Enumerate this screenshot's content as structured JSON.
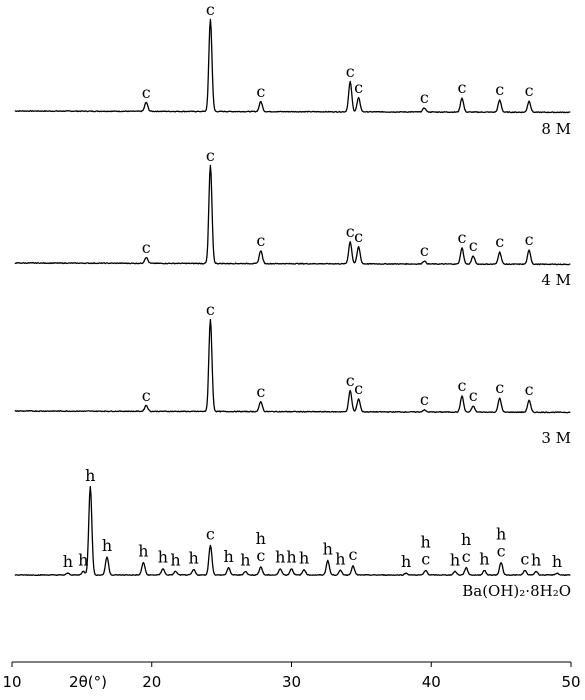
{
  "chart_data": {
    "type": "line",
    "xlabel": "2θ(°)",
    "xlim": [
      10,
      50
    ],
    "x_ticks": [
      10,
      20,
      30,
      40,
      50
    ],
    "y_scale": "intensity (arbitrary units, stacked traces)",
    "grid": false,
    "legend": "none",
    "series": [
      {
        "name": "8 M",
        "baseline": 0.02,
        "peaks": [
          {
            "x": 19.6,
            "y": 0.09,
            "label": "c"
          },
          {
            "x": 24.2,
            "y": 0.92,
            "label": "c"
          },
          {
            "x": 27.8,
            "y": 0.1,
            "label": "c"
          },
          {
            "x": 34.2,
            "y": 0.3,
            "label": "c"
          },
          {
            "x": 34.8,
            "y": 0.14,
            "label": "c"
          },
          {
            "x": 39.5,
            "y": 0.04,
            "label": "c"
          },
          {
            "x": 42.2,
            "y": 0.14,
            "label": "c"
          },
          {
            "x": 44.9,
            "y": 0.12,
            "label": "c"
          },
          {
            "x": 47.0,
            "y": 0.11,
            "label": "c"
          }
        ]
      },
      {
        "name": "4 M",
        "baseline": 0.02,
        "peaks": [
          {
            "x": 19.6,
            "y": 0.06,
            "label": "c"
          },
          {
            "x": 24.2,
            "y": 0.98,
            "label": "c"
          },
          {
            "x": 27.8,
            "y": 0.13,
            "label": "c"
          },
          {
            "x": 34.2,
            "y": 0.22,
            "label": "c"
          },
          {
            "x": 34.8,
            "y": 0.17,
            "label": "c"
          },
          {
            "x": 39.5,
            "y": 0.03,
            "label": "c"
          },
          {
            "x": 42.2,
            "y": 0.16,
            "label": "c"
          },
          {
            "x": 43.0,
            "y": 0.08,
            "label": "c"
          },
          {
            "x": 44.9,
            "y": 0.12,
            "label": "c"
          },
          {
            "x": 47.0,
            "y": 0.14,
            "label": "c"
          }
        ]
      },
      {
        "name": "3 M",
        "baseline": 0.02,
        "peaks": [
          {
            "x": 19.6,
            "y": 0.06,
            "label": "c"
          },
          {
            "x": 24.2,
            "y": 0.92,
            "label": "c"
          },
          {
            "x": 27.8,
            "y": 0.1,
            "label": "c"
          },
          {
            "x": 34.2,
            "y": 0.21,
            "label": "c"
          },
          {
            "x": 34.8,
            "y": 0.13,
            "label": "c"
          },
          {
            "x": 39.5,
            "y": 0.02,
            "label": "c"
          },
          {
            "x": 42.2,
            "y": 0.16,
            "label": "c"
          },
          {
            "x": 43.0,
            "y": 0.06,
            "label": "c"
          },
          {
            "x": 44.9,
            "y": 0.14,
            "label": "c"
          },
          {
            "x": 47.0,
            "y": 0.12,
            "label": "c"
          }
        ]
      },
      {
        "name": "Ba(OH)₂·8H₂O",
        "baseline": 0.0,
        "peaks": [
          {
            "x": 14.0,
            "y": 0.02,
            "label": "h"
          },
          {
            "x": 15.1,
            "y": 0.04,
            "label": "h"
          },
          {
            "x": 15.6,
            "y": 0.98,
            "label": "h"
          },
          {
            "x": 16.8,
            "y": 0.2,
            "label": "h"
          },
          {
            "x": 19.4,
            "y": 0.14,
            "label": "h"
          },
          {
            "x": 20.8,
            "y": 0.07,
            "label": "h"
          },
          {
            "x": 21.7,
            "y": 0.04,
            "label": "h"
          },
          {
            "x": 23.0,
            "y": 0.06,
            "label": "h"
          },
          {
            "x": 24.2,
            "y": 0.33,
            "label": "c"
          },
          {
            "x": 25.5,
            "y": 0.08,
            "label": "h"
          },
          {
            "x": 26.7,
            "y": 0.04,
            "label": "h"
          },
          {
            "x": 27.8,
            "y": 0.09,
            "label": "c"
          },
          {
            "x": 27.8,
            "y": 0.09,
            "label": "h"
          },
          {
            "x": 29.2,
            "y": 0.07,
            "label": "h"
          },
          {
            "x": 30.0,
            "y": 0.07,
            "label": "h"
          },
          {
            "x": 30.9,
            "y": 0.06,
            "label": "h"
          },
          {
            "x": 32.6,
            "y": 0.16,
            "label": "h"
          },
          {
            "x": 33.5,
            "y": 0.05,
            "label": "h"
          },
          {
            "x": 34.4,
            "y": 0.1,
            "label": "c"
          },
          {
            "x": 38.2,
            "y": 0.02,
            "label": "h"
          },
          {
            "x": 39.6,
            "y": 0.05,
            "label": "c"
          },
          {
            "x": 39.6,
            "y": 0.05,
            "label": "h"
          },
          {
            "x": 41.7,
            "y": 0.04,
            "label": "h"
          },
          {
            "x": 42.5,
            "y": 0.08,
            "label": "c"
          },
          {
            "x": 42.5,
            "y": 0.08,
            "label": "h"
          },
          {
            "x": 43.8,
            "y": 0.05,
            "label": "h"
          },
          {
            "x": 45.0,
            "y": 0.14,
            "label": "c"
          },
          {
            "x": 45.0,
            "y": 0.14,
            "label": "h"
          },
          {
            "x": 46.7,
            "y": 0.05,
            "label": "c"
          },
          {
            "x": 47.5,
            "y": 0.04,
            "label": "h"
          },
          {
            "x": 49.0,
            "y": 0.02,
            "label": "h"
          }
        ]
      }
    ],
    "peak_legend": {
      "c": "c",
      "h": "h"
    }
  }
}
